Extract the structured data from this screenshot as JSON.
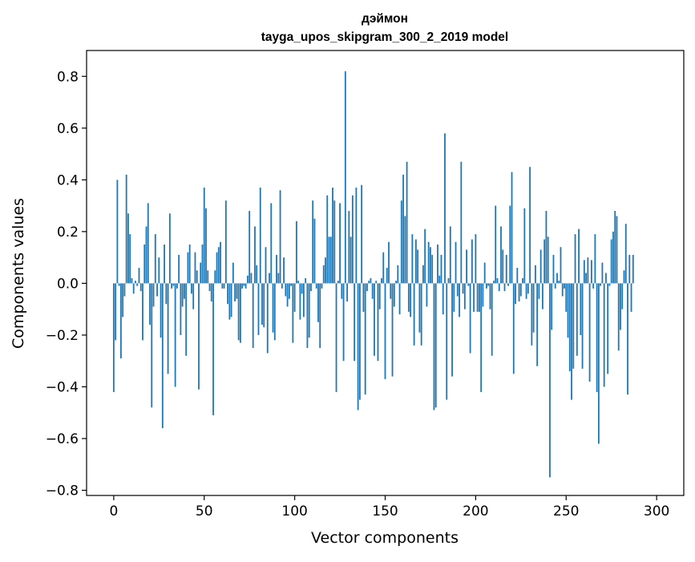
{
  "chart_data": {
    "type": "bar",
    "title_lines": [
      "дэймон",
      "tayga_upos_skipgram_300_2_2019 model"
    ],
    "xlabel": "Vector components",
    "ylabel": "Components values",
    "xlim": [
      -15,
      315
    ],
    "ylim": [
      -0.82,
      0.9
    ],
    "xticks": [
      0,
      50,
      100,
      150,
      200,
      250,
      300
    ],
    "yticks": [
      -0.8,
      -0.6,
      -0.4,
      -0.2,
      0.0,
      0.2,
      0.4,
      0.6,
      0.8
    ],
    "xtick_labels": [
      "0",
      "50",
      "100",
      "150",
      "200",
      "250",
      "300"
    ],
    "ytick_labels": [
      "−0.8",
      "−0.6",
      "−0.4",
      "−0.2",
      "0.0",
      "0.2",
      "0.4",
      "0.6",
      "0.8"
    ],
    "grid": false,
    "bar_color": "#1f77b4",
    "values": [
      -0.42,
      -0.22,
      0.4,
      -0.01,
      -0.29,
      -0.13,
      -0.05,
      0.42,
      0.27,
      0.19,
      0.02,
      -0.04,
      0.01,
      -0.01,
      0.06,
      -0.03,
      -0.22,
      0.15,
      0.22,
      0.31,
      -0.16,
      -0.48,
      -0.09,
      0.19,
      -0.05,
      0.1,
      -0.21,
      -0.56,
      0.15,
      -0.08,
      -0.35,
      0.27,
      -0.02,
      -0.01,
      -0.4,
      -0.02,
      0.11,
      -0.2,
      -0.09,
      -0.06,
      -0.28,
      0.12,
      0.15,
      -0.04,
      -0.1,
      0.12,
      0.05,
      -0.41,
      0.08,
      0.15,
      0.37,
      0.29,
      0.05,
      -0.03,
      -0.07,
      -0.51,
      0.05,
      0.12,
      0.14,
      0.16,
      -0.02,
      -0.02,
      0.32,
      -0.08,
      -0.14,
      -0.13,
      0.08,
      -0.07,
      -0.06,
      -0.22,
      -0.23,
      -0.02,
      -0.01,
      -0.02,
      0.03,
      0.28,
      0.04,
      -0.25,
      0.22,
      0.07,
      -0.2,
      0.37,
      -0.16,
      -0.17,
      0.14,
      -0.27,
      0.04,
      0.31,
      -0.19,
      -0.22,
      0.11,
      0.04,
      0.36,
      -0.02,
      0.1,
      -0.05,
      -0.09,
      -0.06,
      -0.01,
      -0.23,
      -0.11,
      0.24,
      0.01,
      -0.14,
      -0.04,
      -0.13,
      0.02,
      -0.25,
      -0.21,
      -0.03,
      0.32,
      0.25,
      -0.02,
      -0.15,
      -0.25,
      -0.02,
      0.07,
      0.1,
      0.34,
      0.18,
      0.18,
      0.37,
      0.32,
      -0.42,
      0.01,
      0.31,
      -0.06,
      -0.3,
      0.82,
      -0.07,
      0.28,
      0.18,
      0.34,
      -0.3,
      0.37,
      -0.49,
      -0.45,
      0.38,
      -0.11,
      -0.43,
      -0.03,
      0.01,
      0.02,
      -0.06,
      -0.28,
      0.01,
      -0.3,
      -0.1,
      0.02,
      0.12,
      -0.37,
      0.06,
      0.16,
      -0.06,
      -0.36,
      -0.09,
      0.01,
      0.07,
      -0.12,
      0.32,
      0.42,
      0.26,
      0.47,
      -0.11,
      -0.13,
      0.19,
      -0.24,
      0.17,
      0.13,
      -0.19,
      -0.24,
      0.07,
      0.21,
      -0.09,
      0.16,
      0.14,
      0.11,
      -0.49,
      -0.48,
      0.15,
      0.03,
      0.11,
      -0.12,
      0.58,
      -0.45,
      0.02,
      0.22,
      -0.36,
      -0.11,
      0.16,
      -0.05,
      -0.13,
      0.47,
      -0.04,
      -0.1,
      0.13,
      -0.01,
      -0.27,
      0.17,
      -0.11,
      0.19,
      -0.11,
      -0.11,
      -0.42,
      -0.09,
      0.08,
      -0.02,
      -0.01,
      -0.1,
      -0.28,
      0.01,
      0.3,
      0.02,
      -0.03,
      0.22,
      0.13,
      -0.03,
      0.11,
      -0.01,
      0.3,
      0.43,
      -0.35,
      -0.08,
      0.06,
      -0.07,
      -0.05,
      0.02,
      0.29,
      -0.06,
      -0.04,
      0.45,
      -0.24,
      -0.19,
      0.07,
      -0.32,
      -0.06,
      0.13,
      -0.1,
      0.17,
      0.28,
      0.18,
      -0.75,
      -0.18,
      0.11,
      -0.02,
      0.04,
      0.01,
      0.14,
      -0.05,
      -0.02,
      -0.11,
      -0.21,
      -0.34,
      -0.45,
      -0.33,
      0.19,
      -0.28,
      0.21,
      -0.2,
      -0.33,
      0.09,
      0.04,
      0.1,
      -0.38,
      0.09,
      -0.02,
      0.19,
      -0.42,
      -0.62,
      -0.01,
      0.08,
      -0.4,
      0.04,
      -0.35,
      -0.01,
      0.17,
      0.2,
      0.28,
      0.26,
      -0.26,
      -0.18,
      -0.1,
      0.05,
      0.23,
      -0.43,
      0.11,
      -0.11,
      0.11
    ]
  }
}
